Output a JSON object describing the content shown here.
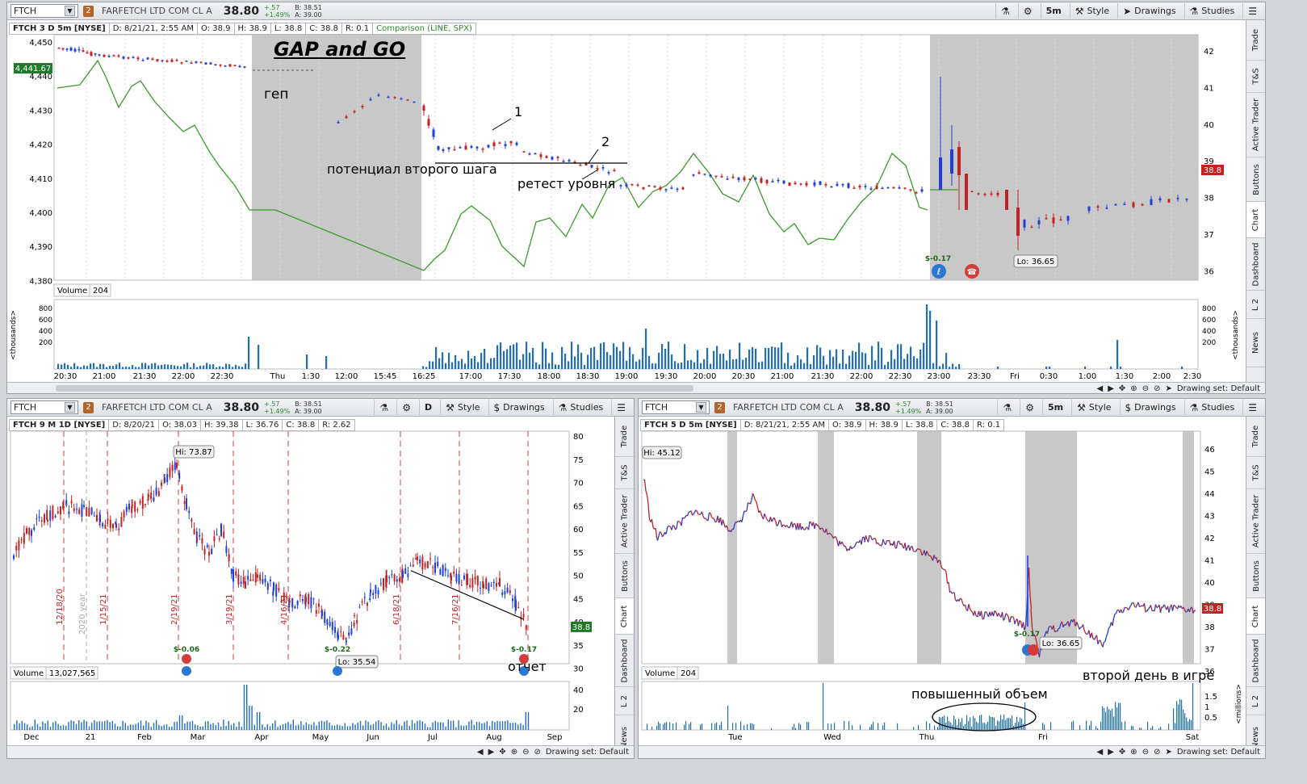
{
  "top": {
    "symbol": "FTCH",
    "company": "FARFETCH LTD COM CL A",
    "last": "38.80",
    "change": "+.57",
    "change_pct": "+1.49%",
    "bid": "B: 38.51",
    "ask": "A: 39.00",
    "timeframe": "5m",
    "style_label": "Style",
    "drawings_label": "Drawings",
    "studies_label": "Studies",
    "info": [
      "FTCH 3 D 5m [NYSE]",
      "D: 8/21/21, 2:55 AM",
      "O: 38.9",
      "H: 38.9",
      "L: 38.8",
      "C: 38.8",
      "R: 0.1"
    ],
    "comparison": "Comparison (LINE, SPX)",
    "price_ticks": [
      "42",
      "41",
      "40",
      "39",
      "38",
      "37",
      "36"
    ],
    "spx_ticks": [
      "4,450",
      "4,440",
      "4,430",
      "4,420",
      "4,410",
      "4,400",
      "4,390",
      "4,380"
    ],
    "spx_current": "4,441.67",
    "price_current": "38.8",
    "x_ticks": [
      "20:30",
      "21:00",
      "21:30",
      "22:00",
      "22:30",
      "Thu",
      "1:30",
      "12:00",
      "15:45",
      "16:25",
      "17:00",
      "17:30",
      "18:00",
      "18:30",
      "19:00",
      "19:30",
      "20:00",
      "20:30",
      "21:00",
      "21:30",
      "22:00",
      "22:30",
      "23:00",
      "23:30",
      "Fri",
      "0:30",
      "1:00",
      "1:30",
      "2:00",
      "2:30"
    ],
    "volume_label": "Volume",
    "volume_value": "204",
    "vol_ticks": [
      "800",
      "600",
      "400",
      "200"
    ],
    "vol_unit": "<thousands>",
    "lo_label": "Lo: 36.65",
    "earnings_label": "$-0.17",
    "drawing_set": "Drawing set: Default",
    "annotations": {
      "title": "GAP and GO",
      "gap": "геп",
      "second_step": "потенциал второго шага",
      "retest": "ретест уровня",
      "n1": "1",
      "n2": "2"
    },
    "side_tabs": [
      "Trade",
      "T&S",
      "Active Trader",
      "Buttons",
      "Chart",
      "Dashboard",
      "L 2",
      "News"
    ]
  },
  "bl": {
    "symbol": "FTCH",
    "company": "FARFETCH LTD COM CL A",
    "last": "38.80",
    "change": "+.57",
    "change_pct": "+1.49%",
    "bid": "B: 38.51",
    "ask": "A: 39.00",
    "timeframe": "D",
    "style_label": "Style",
    "drawings_label": "Drawings",
    "studies_label": "Studies",
    "info": [
      "FTCH 9 M 1D [NYSE]",
      "D: 8/20/21",
      "O: 38.03",
      "H: 39.38",
      "L: 36.76",
      "C: 38.8",
      "R: 2.62"
    ],
    "price_ticks": [
      "80",
      "75",
      "70",
      "65",
      "60",
      "55",
      "50",
      "45",
      "40",
      "35",
      "30"
    ],
    "price_current": "38.8",
    "x_ticks": [
      "Dec",
      "21",
      "Feb",
      "Mar",
      "Apr",
      "May",
      "Jun",
      "Jul",
      "Aug",
      "Sep"
    ],
    "event_dates": [
      "12/18/20",
      "1/15/21",
      "2/19/21",
      "3/19/21",
      "4/16/21",
      "6/18/21",
      "7/16/21"
    ],
    "year_label": "2020 year",
    "hi_label": "Hi: 73.87",
    "lo_label": "Lo: 35.54",
    "earn1": "$-0.06",
    "earn2": "$-0.22",
    "earn3": "$-0.17",
    "volume_label": "Volume",
    "volume_value": "13,027,565",
    "vol_ticks": [
      "40",
      "20"
    ],
    "drawing_set": "Drawing set: Default",
    "report": "отчет",
    "side_tabs": [
      "Trade",
      "T&S",
      "Active Trader",
      "Buttons",
      "Chart",
      "Dashboard",
      "L 2",
      "News"
    ]
  },
  "br": {
    "symbol": "FTCH",
    "company": "FARFETCH LTD COM CL A",
    "last": "38.80",
    "change": "+.57",
    "change_pct": "+1.49%",
    "bid": "B: 38.51",
    "ask": "A: 39.00",
    "timeframe": "5m",
    "style_label": "Style",
    "drawings_label": "Drawings",
    "studies_label": "Studies",
    "info": [
      "FTCH 5 D 5m [NYSE]",
      "D: 8/21/21, 2:55 AM",
      "O: 38.9",
      "H: 38.9",
      "L: 38.8",
      "C: 38.8",
      "R: 0.1"
    ],
    "price_ticks": [
      "46",
      "45",
      "44",
      "43",
      "42",
      "41",
      "40",
      "39",
      "38",
      "37",
      "36"
    ],
    "price_current": "38.8",
    "x_ticks": [
      "Tue",
      "Wed",
      "Thu",
      "Fri",
      "Sat"
    ],
    "hi_label": "Hi: 45.12",
    "lo_label": "Lo: 36.65",
    "earnings_label": "$-0.17",
    "volume_label": "Volume",
    "volume_value": "204",
    "vol_ticks": [
      "1.5",
      "1",
      "0.5"
    ],
    "vol_unit": "<millions>",
    "drawing_set": "Drawing set: Default",
    "high_volume": "повышенный объем",
    "second_day": "второй день в игре",
    "side_tabs": [
      "Trade",
      "T&S",
      "Active Trader",
      "Buttons",
      "Chart",
      "Dashboard",
      "L 2",
      "News"
    ]
  },
  "colors": {
    "up": "#1f3fd6",
    "down": "#c22222",
    "spx": "#3a9a2a",
    "volume": "#1f6fc0",
    "session_shade": "#c8c8c8"
  }
}
